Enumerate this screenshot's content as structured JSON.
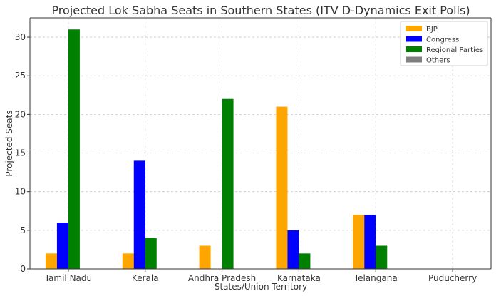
{
  "chart_data": {
    "type": "bar",
    "title": "Projected Lok Sabha Seats in Southern States (ITV D-Dynamics Exit Polls)",
    "xlabel": "States/Union Territory",
    "ylabel": "Projected Seats",
    "categories": [
      "Tamil Nadu",
      "Kerala",
      "Andhra Pradesh",
      "Karnataka",
      "Telangana",
      "Puducherry"
    ],
    "series": [
      {
        "name": "BJP",
        "color": "#FFA500",
        "values": [
          2,
          2,
          3,
          21,
          7,
          0
        ]
      },
      {
        "name": "Congress",
        "color": "#0000FF",
        "values": [
          6,
          14,
          0,
          5,
          7,
          0
        ]
      },
      {
        "name": "Regional Parties",
        "color": "#008000",
        "values": [
          31,
          4,
          22,
          2,
          3,
          0
        ]
      },
      {
        "name": "Others",
        "color": "#808080",
        "values": [
          0,
          0,
          0,
          0,
          0,
          0
        ]
      }
    ],
    "ylim": [
      0,
      32.5
    ],
    "yticks": [
      0,
      5,
      10,
      15,
      20,
      25,
      30
    ],
    "grid": true,
    "legend_position": "top-right"
  }
}
